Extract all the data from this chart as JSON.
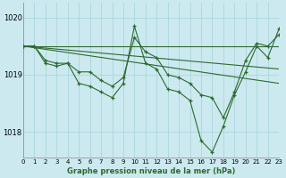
{
  "background_color": "#cce9f0",
  "grid_color": "#b0d8e0",
  "line_color": "#2d6a2d",
  "marker_color": "#2d6a2d",
  "xlabel": "Graphe pression niveau de la mer (hPa)",
  "xlim": [
    0,
    23
  ],
  "ylim": [
    1017.55,
    1020.25
  ],
  "yticks": [
    1018,
    1019,
    1020
  ],
  "xticks": [
    0,
    1,
    2,
    3,
    4,
    5,
    6,
    7,
    8,
    9,
    10,
    11,
    12,
    13,
    14,
    15,
    16,
    17,
    18,
    19,
    20,
    21,
    22,
    23
  ],
  "series_main": [
    {
      "x": [
        0,
        1,
        2,
        3,
        4,
        5,
        6,
        7,
        8,
        9,
        10,
        11,
        12,
        13,
        14,
        15,
        16,
        17,
        18,
        19,
        20,
        21,
        22,
        23
      ],
      "y": [
        1019.5,
        1019.5,
        1019.25,
        1019.2,
        1019.2,
        1019.05,
        1019.05,
        1018.9,
        1018.8,
        1018.95,
        1019.65,
        1019.4,
        1019.3,
        1019.0,
        1018.95,
        1018.85,
        1018.65,
        1018.6,
        1018.25,
        1018.7,
        1019.25,
        1019.55,
        1019.5,
        1019.7
      ]
    },
    {
      "x": [
        0,
        1,
        2,
        3,
        4,
        5,
        6,
        7,
        8,
        9,
        10,
        11,
        12,
        13,
        14,
        15,
        16,
        17,
        18,
        19,
        20,
        21,
        22,
        23
      ],
      "y": [
        1019.5,
        1019.5,
        1019.2,
        1019.15,
        1019.2,
        1018.85,
        1018.8,
        1018.7,
        1018.6,
        1018.85,
        1019.85,
        1019.2,
        1019.1,
        1018.75,
        1018.7,
        1018.55,
        1017.85,
        1017.65,
        1018.1,
        1018.65,
        1019.05,
        1019.5,
        1019.3,
        1019.8
      ]
    }
  ],
  "series_trend": [
    {
      "x": [
        0,
        23
      ],
      "y": [
        1019.5,
        1019.5
      ]
    },
    {
      "x": [
        0,
        23
      ],
      "y": [
        1019.5,
        1019.1
      ]
    },
    {
      "x": [
        0,
        23
      ],
      "y": [
        1019.5,
        1018.85
      ]
    }
  ]
}
